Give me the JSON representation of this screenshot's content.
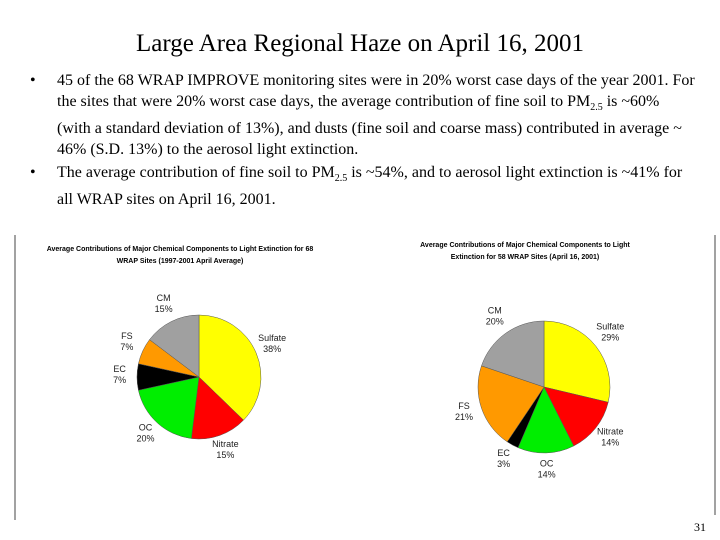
{
  "title": "Large Area Regional Haze on April 16, 2001",
  "bullets": [
    [
      "45 of the 68 WRAP IMPROVE monitoring sites were in 20% worst case days of the year 2001. For the sites that were 20% worst case days, the average contribution of fine soil to PM",
      "2.5",
      " is ~60% (with a standard deviation of 13%), and dusts (fine soil and coarse mass) contributed in average ~ 46% (S.D. 13%) to the aerosol light extinction."
    ],
    [
      "The average contribution of fine soil to PM",
      "2.5",
      " is ~54%, and to aerosol light extinction is ~41% for all WRAP sites on April 16, 2001."
    ]
  ],
  "page_number": "31",
  "chart_data": [
    {
      "type": "pie",
      "title": "Average Contributions of Major Chemical Components to Light Extinction for 68 WRAP Sites (1997-2001 April Average)",
      "categories": [
        "Sulfate",
        "Nitrate",
        "OC",
        "EC",
        "FS",
        "CM"
      ],
      "values": [
        38,
        15,
        20,
        7,
        7,
        15
      ],
      "value_labels": [
        "38%",
        "15%",
        "20%",
        "7%",
        "7%",
        "15%"
      ],
      "colors": [
        "#ffff00",
        "#ff0000",
        "#00ee00",
        "#000000",
        "#ff9900",
        "#a0a0a0"
      ]
    },
    {
      "type": "pie",
      "title": "Average Contributions of Major Chemical Components to Light Extinction for 58 WRAP Sites (April 16, 2001)",
      "categories": [
        "Sulfate",
        "Nitrate",
        "OC",
        "EC",
        "FS",
        "CM"
      ],
      "values": [
        29,
        14,
        14,
        3,
        21,
        20
      ],
      "value_labels": [
        "29%",
        "14%",
        "14%",
        "3%",
        "21%",
        "20%"
      ],
      "colors": [
        "#ffff00",
        "#ff0000",
        "#00ee00",
        "#000000",
        "#ff9900",
        "#a0a0a0"
      ]
    }
  ]
}
